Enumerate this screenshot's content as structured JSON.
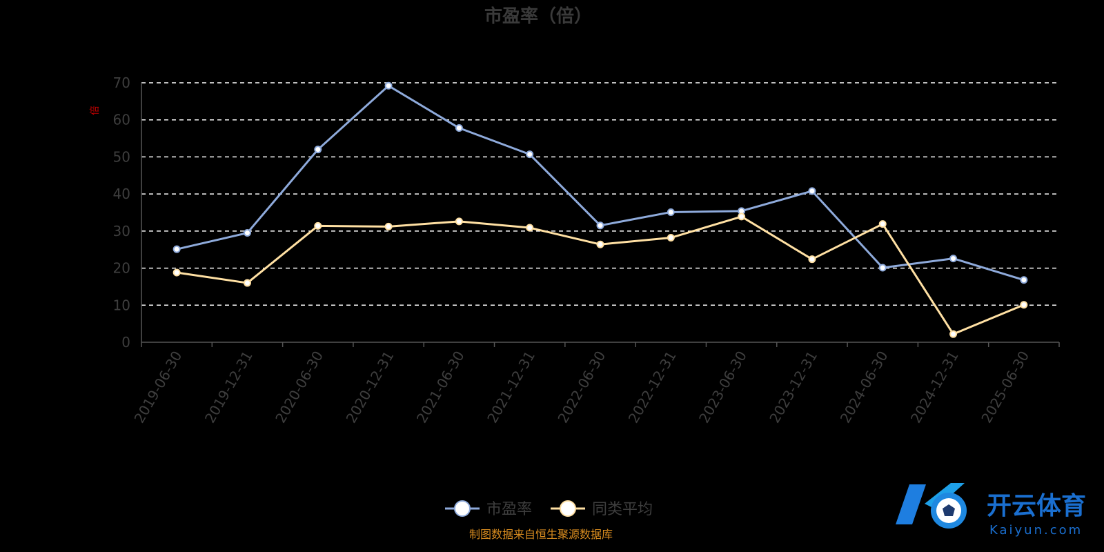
{
  "chart_data": {
    "type": "line",
    "title": "市盈率（倍）",
    "ylabel": "倍",
    "ylim": [
      0,
      70
    ],
    "yticks": [
      0,
      10,
      20,
      30,
      40,
      50,
      60,
      70
    ],
    "grid": true,
    "legend_position": "bottom-center",
    "categories": [
      "2019-06-30",
      "2019-12-31",
      "2020-06-30",
      "2020-12-31",
      "2021-06-30",
      "2021-12-31",
      "2022-06-30",
      "2022-12-31",
      "2023-06-30",
      "2023-12-31",
      "2024-06-30",
      "2024-12-31",
      "2025-06-30"
    ],
    "series": [
      {
        "name": "市盈率",
        "color": "#8eaadb",
        "values": [
          25.1,
          29.5,
          52.0,
          69.2,
          57.8,
          50.7,
          31.5,
          35.1,
          35.4,
          40.8,
          20.1,
          22.6,
          16.8
        ]
      },
      {
        "name": "同类平均",
        "color": "#ffe0a3",
        "values": [
          18.8,
          16.0,
          31.4,
          31.2,
          32.6,
          30.9,
          26.4,
          28.2,
          33.9,
          22.4,
          31.9,
          2.2,
          10.1
        ]
      }
    ],
    "source": "制图数据来自恒生聚源数据库"
  },
  "brand": {
    "logo_icon": "kaiyun-k-football-logo",
    "name_cn": "开云体育",
    "name_en": "Kaiyun.com"
  }
}
